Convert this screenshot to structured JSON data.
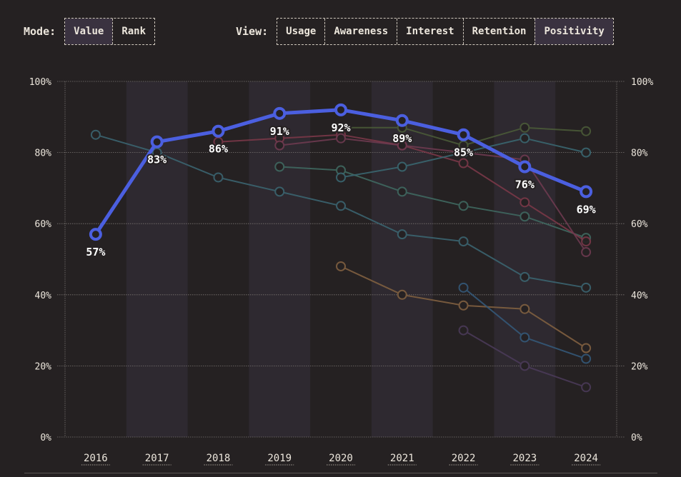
{
  "controls": {
    "mode_label": "Mode:",
    "mode_options": [
      {
        "label": "Value",
        "active": true
      },
      {
        "label": "Rank",
        "active": false
      }
    ],
    "view_label": "View:",
    "view_options": [
      {
        "label": "Usage",
        "active": false
      },
      {
        "label": "Awareness",
        "active": false
      },
      {
        "label": "Interest",
        "active": false
      },
      {
        "label": "Retention",
        "active": false
      },
      {
        "label": "Positivity",
        "active": true
      }
    ]
  },
  "colors": {
    "background": "#252122",
    "band": "#2e2930",
    "highlight": "#4b5fe0",
    "text": "#ece6dc",
    "button_active": "#3a3240"
  },
  "chart_data": {
    "type": "line",
    "x": [
      2016,
      2017,
      2018,
      2019,
      2020,
      2021,
      2022,
      2023,
      2024
    ],
    "ylim": [
      0,
      100
    ],
    "yticks": [
      "0%",
      "20%",
      "40%",
      "60%",
      "80%",
      "100%"
    ],
    "grid": true,
    "highlight": {
      "values": [
        57,
        83,
        86,
        91,
        92,
        89,
        85,
        76,
        69
      ],
      "labels": [
        "57%",
        "83%",
        "86%",
        "91%",
        "92%",
        "89%",
        "85%",
        "76%",
        "69%"
      ],
      "color": "#4b5fe0"
    },
    "series": [
      {
        "color": "#3b6470",
        "values": [
          85,
          80,
          73,
          69,
          65,
          57,
          55,
          45,
          42
        ]
      },
      {
        "color": "#3f6860",
        "values": [
          null,
          null,
          null,
          76,
          75,
          69,
          65,
          62,
          56
        ]
      },
      {
        "color": "#7a3848",
        "values": [
          null,
          null,
          83,
          84,
          85,
          82,
          77,
          66,
          55
        ]
      },
      {
        "color": "#6e3a50",
        "values": [
          null,
          null,
          null,
          82,
          84,
          82,
          80,
          78,
          52
        ]
      },
      {
        "color": "#4a5a38",
        "values": [
          null,
          null,
          null,
          null,
          87,
          87,
          82,
          87,
          86
        ]
      },
      {
        "color": "#3a6670",
        "values": [
          null,
          null,
          null,
          null,
          73,
          76,
          80,
          84,
          80
        ]
      },
      {
        "color": "#806040",
        "values": [
          null,
          null,
          null,
          null,
          48,
          40,
          37,
          36,
          25
        ]
      },
      {
        "color": "#345878",
        "values": [
          null,
          null,
          null,
          null,
          null,
          null,
          42,
          28,
          22
        ]
      },
      {
        "color": "#4a3a58",
        "values": [
          null,
          null,
          null,
          null,
          null,
          null,
          30,
          20,
          14
        ]
      }
    ]
  }
}
